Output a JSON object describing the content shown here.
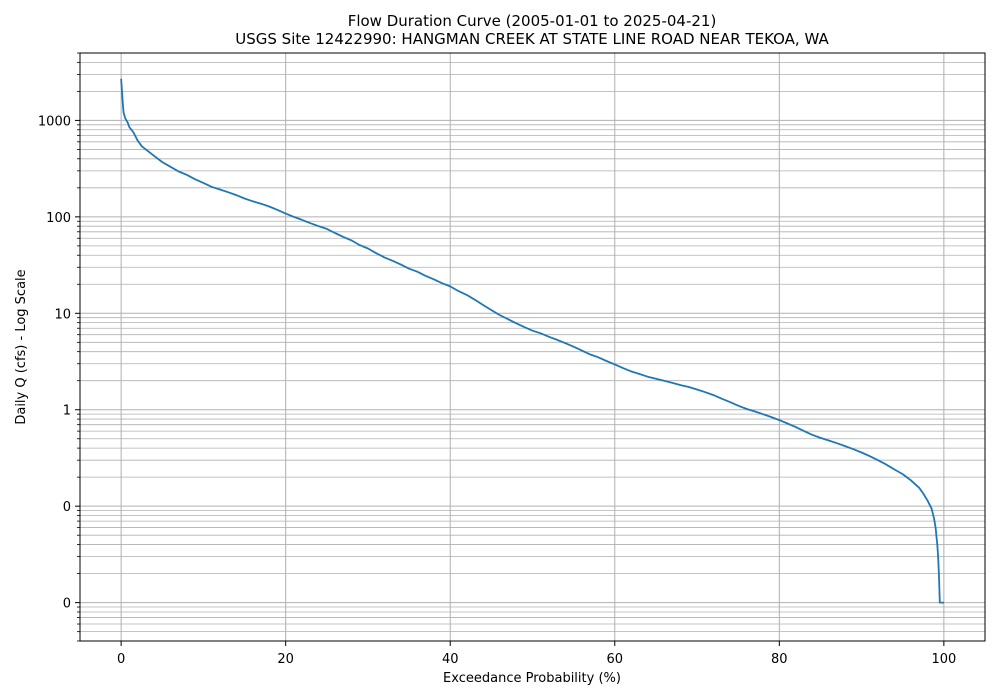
{
  "chart_data": {
    "type": "line",
    "title": "Flow Duration Curve (2005-01-01 to 2025-04-21)",
    "subtitle": "USGS Site 12422990: HANGMAN CREEK AT STATE LINE ROAD NEAR TEKOA, WA",
    "xlabel": "Exceedance Probability (%)",
    "ylabel": "Daily Q (cfs) - Log Scale",
    "xlim": [
      -5,
      105
    ],
    "ylim": [
      0.004,
      5000
    ],
    "y_scale": "log",
    "grid": true,
    "line_color": "#1f77b4",
    "x_ticks": [
      {
        "value": 0,
        "label": "0"
      },
      {
        "value": 20,
        "label": "20"
      },
      {
        "value": 40,
        "label": "40"
      },
      {
        "value": 60,
        "label": "60"
      },
      {
        "value": 80,
        "label": "80"
      },
      {
        "value": 100,
        "label": "100"
      }
    ],
    "y_ticks": [
      {
        "value": 0.01,
        "label": "0"
      },
      {
        "value": 0.1,
        "label": "0"
      },
      {
        "value": 1,
        "label": "1"
      },
      {
        "value": 10,
        "label": "10"
      },
      {
        "value": 100,
        "label": "100"
      },
      {
        "value": 1000,
        "label": "1000"
      }
    ],
    "series": [
      {
        "x": [
          0,
          0.1,
          0.2,
          0.3,
          0.5,
          0.8,
          1.0,
          1.5,
          2.0,
          2.5,
          3.0,
          4.0,
          5.0,
          6.0,
          7.0,
          8.0,
          9.0,
          10.0,
          11.0,
          12.0,
          13.0,
          14.0,
          15.0,
          16.0,
          17.0,
          18.0,
          19.0,
          20.0,
          21.0,
          22.0,
          23.0,
          24.0,
          25.0,
          26.0,
          27.0,
          28.0,
          29.0,
          30.0,
          31.0,
          32.0,
          33.0,
          34.0,
          35.0,
          36.0,
          37.0,
          38.0,
          39.0,
          40.0,
          41.0,
          42.0,
          43.0,
          44.0,
          45.0,
          46.0,
          47.0,
          48.0,
          49.0,
          50.0,
          51.0,
          52.0,
          53.0,
          54.0,
          55.0,
          56.0,
          57.0,
          58.0,
          59.0,
          60.0,
          61.0,
          62.0,
          63.0,
          64.0,
          65.0,
          66.0,
          67.0,
          68.0,
          69.0,
          70.0,
          71.0,
          72.0,
          73.0,
          74.0,
          75.0,
          76.0,
          77.0,
          78.0,
          79.0,
          80.0,
          81.0,
          82.0,
          83.0,
          84.0,
          85.0,
          86.0,
          87.0,
          88.0,
          89.0,
          90.0,
          91.0,
          92.0,
          93.0,
          94.0,
          95.0,
          96.0,
          97.0,
          97.5,
          98.0,
          98.5,
          98.8,
          99.0,
          99.1,
          99.2,
          99.3,
          99.4,
          99.5,
          99.6,
          99.8,
          100.0
        ],
        "y": [
          2700,
          2000,
          1500,
          1200,
          1050,
          950,
          850,
          750,
          620,
          540,
          500,
          430,
          370,
          330,
          295,
          272,
          245,
          225,
          205,
          192,
          180,
          168,
          155,
          145,
          137,
          128,
          118,
          108,
          100,
          93,
          86,
          80,
          75,
          68,
          62,
          57,
          51,
          47,
          42,
          38,
          35,
          32,
          29,
          27,
          24.5,
          22.5,
          20.5,
          19,
          17,
          15.5,
          13.8,
          12.2,
          10.8,
          9.6,
          8.7,
          7.9,
          7.2,
          6.6,
          6.2,
          5.7,
          5.3,
          4.9,
          4.5,
          4.1,
          3.75,
          3.5,
          3.2,
          2.95,
          2.7,
          2.5,
          2.35,
          2.2,
          2.1,
          2.0,
          1.9,
          1.8,
          1.72,
          1.62,
          1.52,
          1.42,
          1.3,
          1.2,
          1.1,
          1.02,
          0.96,
          0.9,
          0.84,
          0.78,
          0.72,
          0.66,
          0.6,
          0.55,
          0.51,
          0.48,
          0.45,
          0.42,
          0.39,
          0.36,
          0.33,
          0.3,
          0.27,
          0.24,
          0.215,
          0.185,
          0.155,
          0.135,
          0.115,
          0.095,
          0.075,
          0.06,
          0.048,
          0.04,
          0.03,
          0.02,
          0.01,
          0.01,
          0.01,
          0.01
        ]
      }
    ]
  }
}
